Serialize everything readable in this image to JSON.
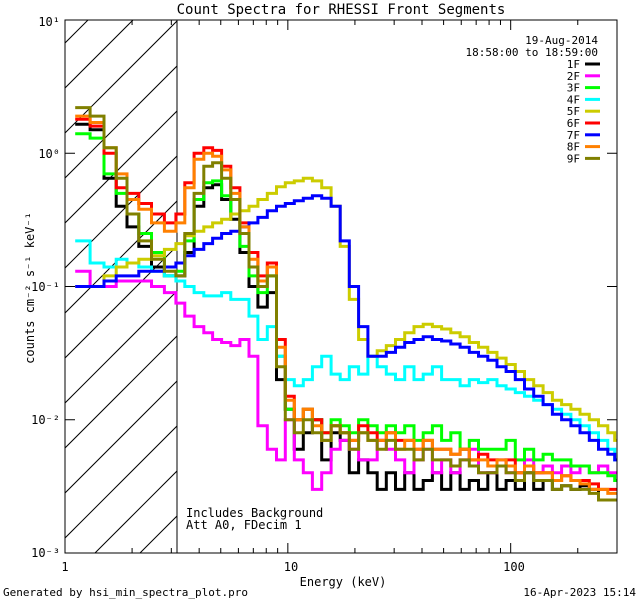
{
  "chart_data": {
    "type": "line",
    "title": "Count Spectra for RHESSI Front Segments",
    "xlabel": "Energy (keV)",
    "ylabel": "counts cm⁻² s⁻¹ keV⁻¹",
    "xscale": "log",
    "yscale": "log",
    "xlim": [
      1,
      300
    ],
    "ylim": [
      0.001,
      10
    ],
    "x_tick_labels": [
      "1",
      "10",
      "100"
    ],
    "y_tick_labels": [
      "10⁻³",
      "10⁻²",
      "10⁻¹",
      "10⁰",
      "10¹"
    ],
    "date": "19-Aug-2014",
    "time_range": "18:58:00 to 18:59:00",
    "excluded_region": {
      "from": 1,
      "to": 3
    },
    "annotations": [
      "Includes Background",
      "Att A0, FDecim 1"
    ],
    "footer_left": "Generated by hsi_min_spectra_plot.pro",
    "footer_right": "16-Apr-2023 15:14",
    "energies": [
      1.2,
      1.4,
      1.6,
      1.8,
      2,
      2.3,
      2.6,
      3,
      3.3,
      3.6,
      4,
      4.4,
      4.8,
      5.3,
      5.8,
      6.4,
      7,
      7.7,
      8.5,
      9.3,
      10.2,
      11.2,
      12.3,
      13.5,
      14.9,
      16.4,
      18,
      19.8,
      21.8,
      24,
      26.4,
      29,
      31.9,
      35.1,
      38.6,
      42.5,
      46.7,
      51.4,
      56.5,
      62.2,
      68.4,
      75.2,
      82.8,
      91,
      100,
      110,
      121,
      133,
      147,
      161,
      178,
      195,
      215,
      236,
      260,
      286,
      300
    ],
    "series": [
      {
        "name": "1F",
        "color": "#000000",
        "values": [
          1.65,
          1.5,
          0.65,
          0.4,
          0.28,
          0.2,
          0.14,
          0.12,
          0.12,
          0.18,
          0.4,
          0.55,
          0.58,
          0.45,
          0.32,
          0.18,
          0.1,
          0.07,
          0.09,
          0.02,
          0.012,
          0.006,
          0.008,
          0.01,
          0.005,
          0.008,
          0.007,
          0.004,
          0.005,
          0.004,
          0.003,
          0.004,
          0.003,
          0.004,
          0.003,
          0.0035,
          0.004,
          0.003,
          0.004,
          0.003,
          0.0035,
          0.003,
          0.004,
          0.003,
          0.0035,
          0.003,
          0.004,
          0.003,
          0.0035,
          0.003,
          0.0032,
          0.003,
          0.0032,
          0.003,
          0.0025,
          0.0025,
          0.0025
        ]
      },
      {
        "name": "2F",
        "color": "#ff00ff",
        "values": [
          0.13,
          0.1,
          0.1,
          0.11,
          0.11,
          0.11,
          0.1,
          0.09,
          0.075,
          0.06,
          0.05,
          0.045,
          0.04,
          0.038,
          0.036,
          0.04,
          0.03,
          0.009,
          0.006,
          0.005,
          0.01,
          0.005,
          0.004,
          0.003,
          0.004,
          0.006,
          0.007,
          0.006,
          0.005,
          0.005,
          0.007,
          0.006,
          0.005,
          0.004,
          0.005,
          0.006,
          0.004,
          0.005,
          0.004,
          0.005,
          0.006,
          0.004,
          0.004,
          0.005,
          0.004,
          0.004,
          0.005,
          0.004,
          0.0045,
          0.004,
          0.0045,
          0.004,
          0.0045,
          0.004,
          0.0045,
          0.004,
          0.004
        ]
      },
      {
        "name": "3F",
        "color": "#00ff00",
        "values": [
          1.4,
          1.3,
          0.7,
          0.5,
          0.35,
          0.25,
          0.18,
          0.12,
          0.13,
          0.22,
          0.45,
          0.6,
          0.62,
          0.48,
          0.35,
          0.2,
          0.12,
          0.09,
          0.12,
          0.03,
          0.012,
          0.01,
          0.012,
          0.01,
          0.008,
          0.01,
          0.009,
          0.008,
          0.01,
          0.009,
          0.008,
          0.009,
          0.008,
          0.009,
          0.007,
          0.008,
          0.009,
          0.007,
          0.008,
          0.006,
          0.007,
          0.006,
          0.006,
          0.006,
          0.007,
          0.005,
          0.006,
          0.005,
          0.0055,
          0.005,
          0.005,
          0.0045,
          0.0045,
          0.004,
          0.004,
          0.0038,
          0.0035
        ]
      },
      {
        "name": "4F",
        "color": "#00ffff",
        "values": [
          0.22,
          0.15,
          0.14,
          0.16,
          0.15,
          0.14,
          0.13,
          0.12,
          0.11,
          0.1,
          0.09,
          0.085,
          0.085,
          0.09,
          0.08,
          0.08,
          0.06,
          0.04,
          0.05,
          0.03,
          0.02,
          0.018,
          0.02,
          0.025,
          0.03,
          0.022,
          0.02,
          0.025,
          0.022,
          0.03,
          0.025,
          0.022,
          0.02,
          0.025,
          0.02,
          0.022,
          0.025,
          0.02,
          0.02,
          0.018,
          0.02,
          0.019,
          0.02,
          0.018,
          0.017,
          0.016,
          0.015,
          0.014,
          0.013,
          0.012,
          0.011,
          0.01,
          0.009,
          0.008,
          0.007,
          0.006,
          0.005
        ]
      },
      {
        "name": "5F",
        "color": "#cccc00",
        "values": [
          0.1,
          0.1,
          0.12,
          0.14,
          0.15,
          0.16,
          0.17,
          0.19,
          0.21,
          0.24,
          0.26,
          0.28,
          0.3,
          0.32,
          0.35,
          0.37,
          0.4,
          0.45,
          0.5,
          0.56,
          0.6,
          0.62,
          0.65,
          0.62,
          0.55,
          0.4,
          0.2,
          0.08,
          0.04,
          0.03,
          0.033,
          0.036,
          0.04,
          0.045,
          0.05,
          0.052,
          0.05,
          0.048,
          0.045,
          0.042,
          0.038,
          0.035,
          0.032,
          0.029,
          0.026,
          0.023,
          0.02,
          0.018,
          0.016,
          0.014,
          0.013,
          0.012,
          0.011,
          0.01,
          0.009,
          0.008,
          0.007
        ]
      },
      {
        "name": "6F",
        "color": "#ff0000",
        "values": [
          1.8,
          1.6,
          1.0,
          0.55,
          0.5,
          0.42,
          0.35,
          0.3,
          0.35,
          0.6,
          1.0,
          1.1,
          1.05,
          0.8,
          0.55,
          0.3,
          0.18,
          0.12,
          0.15,
          0.04,
          0.015,
          0.01,
          0.012,
          0.01,
          0.008,
          0.009,
          0.008,
          0.007,
          0.009,
          0.008,
          0.007,
          0.008,
          0.007,
          0.007,
          0.006,
          0.007,
          0.006,
          0.006,
          0.0055,
          0.006,
          0.005,
          0.0055,
          0.005,
          0.0045,
          0.005,
          0.004,
          0.0045,
          0.004,
          0.004,
          0.0035,
          0.0038,
          0.0035,
          0.0035,
          0.0033,
          0.003,
          0.003,
          0.003
        ]
      },
      {
        "name": "7F",
        "color": "#0000ff",
        "values": [
          0.1,
          0.1,
          0.11,
          0.12,
          0.12,
          0.13,
          0.13,
          0.14,
          0.15,
          0.17,
          0.19,
          0.21,
          0.23,
          0.25,
          0.26,
          0.28,
          0.3,
          0.33,
          0.37,
          0.4,
          0.42,
          0.44,
          0.46,
          0.48,
          0.46,
          0.4,
          0.22,
          0.1,
          0.05,
          0.03,
          0.03,
          0.032,
          0.035,
          0.038,
          0.04,
          0.042,
          0.04,
          0.039,
          0.037,
          0.035,
          0.032,
          0.03,
          0.028,
          0.025,
          0.023,
          0.02,
          0.017,
          0.015,
          0.013,
          0.011,
          0.01,
          0.009,
          0.008,
          0.007,
          0.006,
          0.0055,
          0.005
        ]
      },
      {
        "name": "8F",
        "color": "#ff8000",
        "values": [
          1.9,
          1.7,
          1.1,
          0.7,
          0.45,
          0.38,
          0.3,
          0.26,
          0.3,
          0.55,
          0.9,
          1.0,
          0.95,
          0.75,
          0.5,
          0.28,
          0.16,
          0.11,
          0.14,
          0.035,
          0.014,
          0.01,
          0.012,
          0.009,
          0.007,
          0.009,
          0.008,
          0.007,
          0.008,
          0.007,
          0.007,
          0.008,
          0.006,
          0.007,
          0.006,
          0.007,
          0.006,
          0.006,
          0.0055,
          0.006,
          0.005,
          0.005,
          0.0045,
          0.005,
          0.0045,
          0.004,
          0.0045,
          0.004,
          0.004,
          0.0035,
          0.0038,
          0.0035,
          0.0033,
          0.003,
          0.003,
          0.0028,
          0.0028
        ]
      },
      {
        "name": "9F",
        "color": "#808000",
        "values": [
          2.2,
          1.9,
          1.1,
          0.65,
          0.35,
          0.22,
          0.16,
          0.13,
          0.12,
          0.25,
          0.5,
          0.8,
          0.85,
          0.65,
          0.45,
          0.25,
          0.14,
          0.1,
          0.12,
          0.025,
          0.01,
          0.008,
          0.01,
          0.008,
          0.007,
          0.009,
          0.008,
          0.006,
          0.008,
          0.007,
          0.006,
          0.007,
          0.006,
          0.006,
          0.005,
          0.006,
          0.005,
          0.005,
          0.0045,
          0.005,
          0.0045,
          0.004,
          0.004,
          0.0045,
          0.004,
          0.0035,
          0.004,
          0.0035,
          0.0035,
          0.003,
          0.0032,
          0.003,
          0.003,
          0.0028,
          0.0025,
          0.0025,
          0.0025
        ]
      }
    ]
  }
}
